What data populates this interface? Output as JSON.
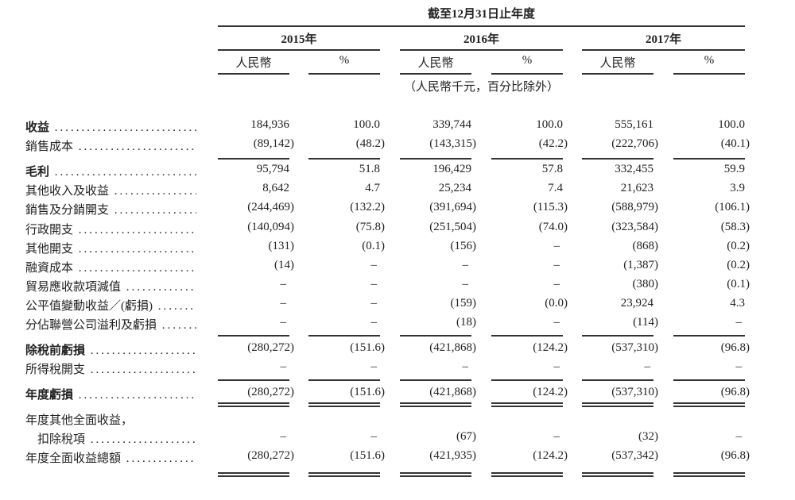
{
  "header": {
    "period": "截至12月31日止年度",
    "years": [
      "2015年",
      "2016年",
      "2017年"
    ],
    "subheads": [
      "人民幣",
      "%",
      "人民幣",
      "%",
      "人民幣",
      "%"
    ],
    "unit_note": "（人民幣千元，百分比除外）"
  },
  "rows": [
    {
      "label": "收益",
      "bold": true,
      "values": [
        "184,936",
        "100.0",
        "339,744",
        "100.0",
        "555,161",
        "100.0"
      ]
    },
    {
      "label": "銷售成本",
      "values": [
        "(89,142)",
        "(48.2)",
        "(143,315)",
        "(42.2)",
        "(222,706)",
        "(40.1)"
      ]
    },
    {
      "label": "毛利",
      "bold": true,
      "values": [
        "95,794",
        "51.8",
        "196,429",
        "57.8",
        "332,455",
        "59.9"
      ]
    },
    {
      "label": "其他收入及收益",
      "values": [
        "8,642",
        "4.7",
        "25,234",
        "7.4",
        "21,623",
        "3.9"
      ]
    },
    {
      "label": "銷售及分銷開支",
      "values": [
        "(244,469)",
        "(132.2)",
        "(391,694)",
        "(115.3)",
        "(588,979)",
        "(106.1)"
      ]
    },
    {
      "label": "行政開支",
      "values": [
        "(140,094)",
        "(75.8)",
        "(251,504)",
        "(74.0)",
        "(323,584)",
        "(58.3)"
      ]
    },
    {
      "label": "其他開支",
      "values": [
        "(131)",
        "(0.1)",
        "(156)",
        "–",
        "(868)",
        "(0.2)"
      ]
    },
    {
      "label": "融資成本",
      "values": [
        "(14)",
        "–",
        "–",
        "–",
        "(1,387)",
        "(0.2)"
      ]
    },
    {
      "label": "貿易應收款項減值",
      "values": [
        "–",
        "–",
        "–",
        "–",
        "(380)",
        "(0.1)"
      ]
    },
    {
      "label": "公平值變動收益／(虧損)",
      "values": [
        "–",
        "–",
        "(159)",
        "(0.0)",
        "23,924",
        "4.3"
      ]
    },
    {
      "label": "分佔聯營公司溢利及虧損",
      "values": [
        "–",
        "–",
        "(18)",
        "–",
        "(114)",
        "–"
      ]
    },
    {
      "label": "除稅前虧損",
      "bold": true,
      "values": [
        "(280,272)",
        "(151.6)",
        "(421,868)",
        "(124.2)",
        "(537,310)",
        "(96.8)"
      ]
    },
    {
      "label": "所得稅開支",
      "values": [
        "–",
        "–",
        "–",
        "–",
        "–",
        "–"
      ]
    },
    {
      "label": "年度虧損",
      "bold": true,
      "values": [
        "(280,272)",
        "(151.6)",
        "(421,868)",
        "(124.2)",
        "(537,310)",
        "(96.8)"
      ]
    },
    {
      "label": "年度其他全面收益，",
      "nodots": true,
      "values": []
    },
    {
      "label": "　扣除稅項",
      "values": [
        "–",
        "–",
        "(67)",
        "–",
        "(32)",
        "–"
      ]
    },
    {
      "label": "年度全面收益總額",
      "values": [
        "(280,272)",
        "(151.6)",
        "(421,935)",
        "(124.2)",
        "(537,342)",
        "(96.8)"
      ]
    }
  ]
}
